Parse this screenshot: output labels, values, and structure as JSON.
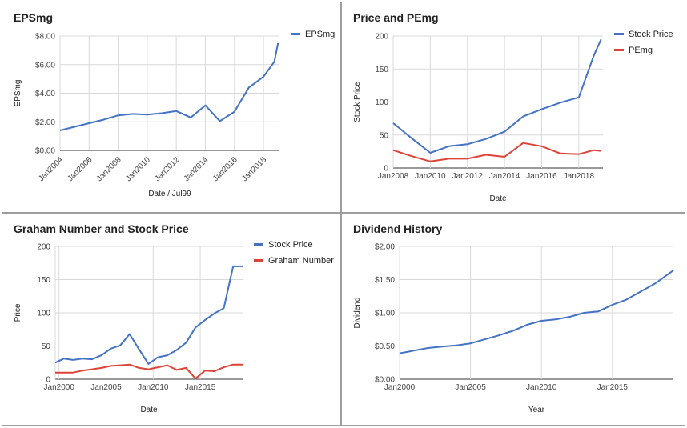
{
  "chart_data": [
    {
      "type": "line",
      "title": "EPSmg",
      "xlabel": "Date / Jul99",
      "ylabel": "EPSmg",
      "x_tick_labels": [
        "Jan2004",
        "Jan2006",
        "Jan2008",
        "Jan2010",
        "Jan2012",
        "Jan2014",
        "Jan2016",
        "Jan2018"
      ],
      "y_tick_labels": [
        "$0.00",
        "$2.00",
        "$4.00",
        "$6.00",
        "$8.00"
      ],
      "xlim": [
        2004,
        2019.1
      ],
      "ylim": [
        0,
        8
      ],
      "legend": "right",
      "series": [
        {
          "name": "EPSmg",
          "color": "#4472c4",
          "points": [
            [
              2004,
              1.4
            ],
            [
              2005,
              1.65
            ],
            [
              2006,
              1.9
            ],
            [
              2007,
              2.15
            ],
            [
              2008,
              2.45
            ],
            [
              2009,
              2.55
            ],
            [
              2010,
              2.5
            ],
            [
              2011,
              2.6
            ],
            [
              2012,
              2.75
            ],
            [
              2013,
              2.3
            ],
            [
              2014,
              3.15
            ],
            [
              2015,
              2.05
            ],
            [
              2016,
              2.7
            ],
            [
              2017,
              4.4
            ],
            [
              2018,
              5.15
            ],
            [
              2018.75,
              6.2
            ],
            [
              2019,
              7.5
            ]
          ]
        }
      ]
    },
    {
      "type": "line",
      "title": "Price and PEmg",
      "xlabel": "Date",
      "ylabel": "Stock Price",
      "x_tick_labels": [
        "Jan2008",
        "Jan2010",
        "Jan2012",
        "Jan2014",
        "Jan2016",
        "Jan2018"
      ],
      "y_tick_labels": [
        "0",
        "50",
        "100",
        "150",
        "200"
      ],
      "xlim": [
        2008,
        2019.3
      ],
      "ylim": [
        0,
        200
      ],
      "legend": "right",
      "series": [
        {
          "name": "Stock Price",
          "color": "#4472c4",
          "points": [
            [
              2008,
              68
            ],
            [
              2009,
              45
            ],
            [
              2010,
              23
            ],
            [
              2011,
              33
            ],
            [
              2012,
              36
            ],
            [
              2013,
              44
            ],
            [
              2014,
              55
            ],
            [
              2015,
              78
            ],
            [
              2016,
              89
            ],
            [
              2017,
              99
            ],
            [
              2018,
              107
            ],
            [
              2018.8,
              170
            ],
            [
              2019.2,
              195
            ]
          ]
        },
        {
          "name": "PEmg",
          "color": "#db4437",
          "points": [
            [
              2008,
              27
            ],
            [
              2009,
              18
            ],
            [
              2010,
              10
            ],
            [
              2011,
              14
            ],
            [
              2012,
              14
            ],
            [
              2013,
              20
            ],
            [
              2014,
              17
            ],
            [
              2015,
              38
            ],
            [
              2016,
              33
            ],
            [
              2017,
              22
            ],
            [
              2018,
              21
            ],
            [
              2018.8,
              27
            ],
            [
              2019.2,
              26
            ]
          ]
        }
      ]
    },
    {
      "type": "line",
      "title": "Graham Number and Stock Price",
      "xlabel": "Date",
      "ylabel": "Price",
      "x_tick_labels": [
        "Jan2000",
        "Jan2005",
        "Jan2010",
        "Jan2015"
      ],
      "y_tick_labels": [
        "0",
        "50",
        "100",
        "150",
        "200"
      ],
      "xlim": [
        1999.6,
        2019.5
      ],
      "ylim": [
        0,
        200
      ],
      "legend": "right",
      "series": [
        {
          "name": "Stock Price",
          "color": "#4472c4",
          "points": [
            [
              1999.6,
              25
            ],
            [
              2000.5,
              31
            ],
            [
              2001.5,
              29
            ],
            [
              2002.5,
              31
            ],
            [
              2003.5,
              30
            ],
            [
              2004.5,
              36
            ],
            [
              2005.5,
              46
            ],
            [
              2006.5,
              51
            ],
            [
              2007.5,
              68
            ],
            [
              2008.5,
              45
            ],
            [
              2009.5,
              23
            ],
            [
              2010.5,
              33
            ],
            [
              2011.5,
              36
            ],
            [
              2012.5,
              44
            ],
            [
              2013.5,
              55
            ],
            [
              2014.5,
              78
            ],
            [
              2015.5,
              89
            ],
            [
              2016.5,
              99
            ],
            [
              2017.5,
              107
            ],
            [
              2018.5,
              170
            ],
            [
              2019.5,
              170
            ]
          ]
        },
        {
          "name": "Graham Number",
          "color": "#db4437",
          "points": [
            [
              1999.6,
              10
            ],
            [
              2000.5,
              10
            ],
            [
              2001.5,
              10
            ],
            [
              2002.5,
              13
            ],
            [
              2003.5,
              15
            ],
            [
              2004.5,
              17
            ],
            [
              2005.5,
              20
            ],
            [
              2006.5,
              21
            ],
            [
              2007.5,
              22
            ],
            [
              2008.5,
              17
            ],
            [
              2009.5,
              15
            ],
            [
              2010.5,
              18
            ],
            [
              2011.5,
              21
            ],
            [
              2012.5,
              14
            ],
            [
              2013.5,
              17
            ],
            [
              2014.5,
              1
            ],
            [
              2015.5,
              13
            ],
            [
              2016.5,
              12
            ],
            [
              2017.5,
              18
            ],
            [
              2018.5,
              22
            ],
            [
              2019.5,
              22
            ]
          ]
        }
      ]
    },
    {
      "type": "line",
      "title": "Dividend History",
      "xlabel": "Year",
      "ylabel": "Dividend",
      "x_tick_labels": [
        "Jan2000",
        "Jan2005",
        "Jan2010",
        "Jan2015"
      ],
      "y_tick_labels": [
        "$0.00",
        "$0.50",
        "$1.00",
        "$1.50",
        "$2.00"
      ],
      "xlim": [
        2000,
        2019.3
      ],
      "ylim": [
        0,
        2
      ],
      "series": [
        {
          "name": "Dividend",
          "color": "#4472c4",
          "points": [
            [
              2000,
              0.39
            ],
            [
              2001,
              0.43
            ],
            [
              2002,
              0.47
            ],
            [
              2003,
              0.49
            ],
            [
              2004,
              0.51
            ],
            [
              2005,
              0.54
            ],
            [
              2006,
              0.6
            ],
            [
              2007,
              0.66
            ],
            [
              2008,
              0.73
            ],
            [
              2009,
              0.82
            ],
            [
              2010,
              0.88
            ],
            [
              2011,
              0.9
            ],
            [
              2012,
              0.94
            ],
            [
              2013,
              1.0
            ],
            [
              2014,
              1.02
            ],
            [
              2015,
              1.12
            ],
            [
              2016,
              1.2
            ],
            [
              2017,
              1.32
            ],
            [
              2018,
              1.44
            ],
            [
              2019.3,
              1.64
            ]
          ]
        }
      ]
    }
  ]
}
